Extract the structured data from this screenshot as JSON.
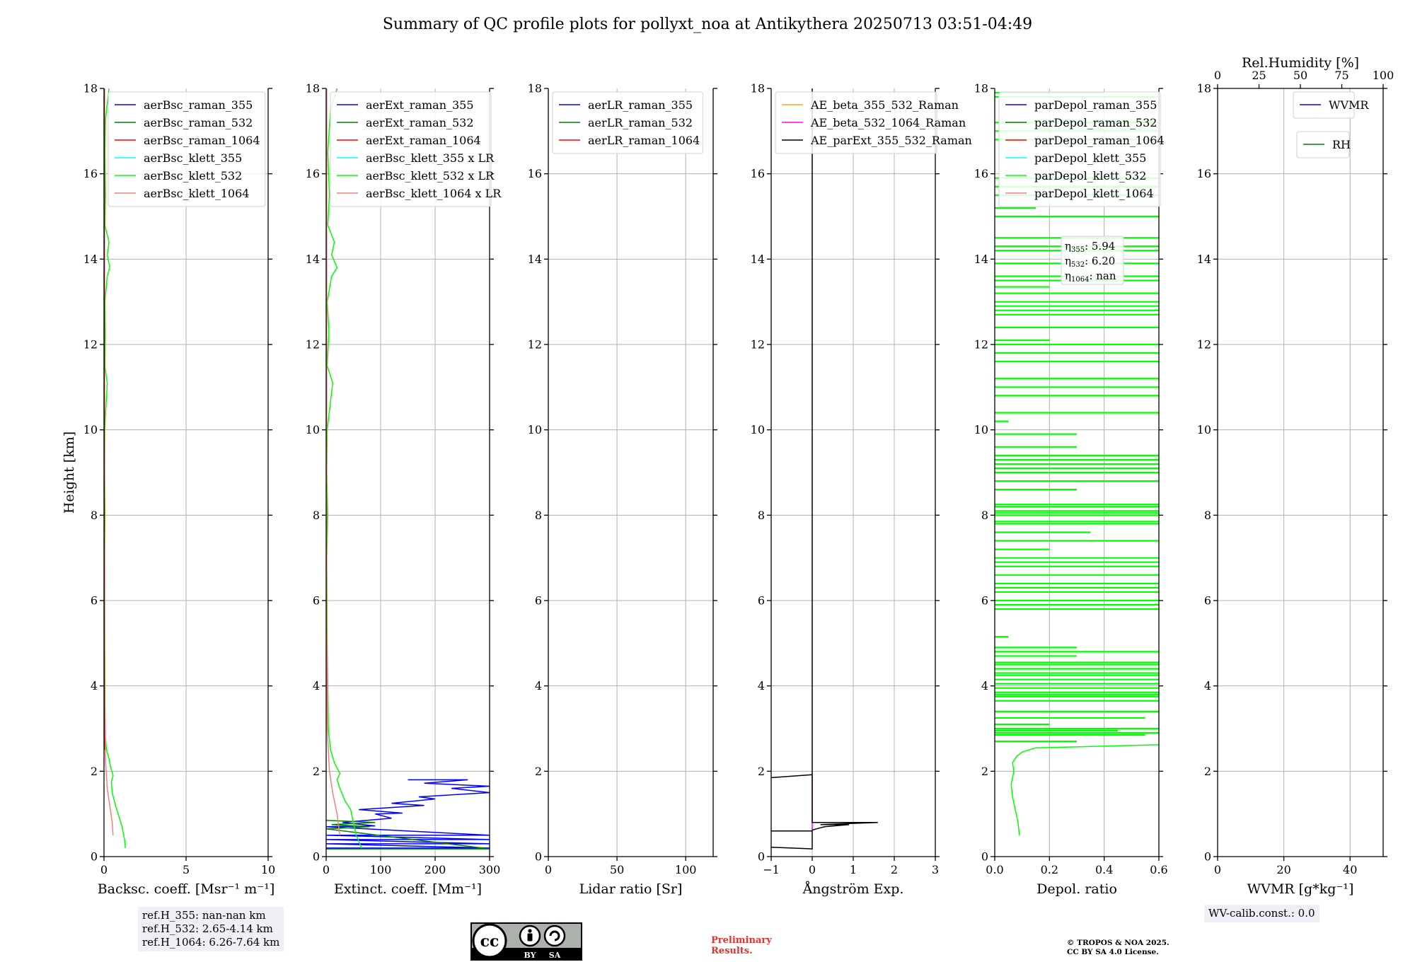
{
  "title": "Summary of QC profile plots for pollyxt_noa at Antikythera 20250713 03:51-04:49",
  "ylabel": "Height [km]",
  "ytick_labels": [
    "0",
    "2",
    "4",
    "6",
    "8",
    "10",
    "12",
    "14",
    "16",
    "18"
  ],
  "y_range": [
    0,
    18
  ],
  "chart_data": [
    {
      "type": "line",
      "id": "backscatter",
      "xlabel": "Backsc. coeff. [Msr⁻¹ m⁻¹]",
      "xlim": [
        0,
        10
      ],
      "xticks": [
        0,
        5,
        10
      ],
      "xtick_labels": [
        "0",
        "5",
        "10"
      ],
      "legend": [
        {
          "label": "aerBsc_raman_355",
          "color": "#0000ff"
        },
        {
          "label": "aerBsc_raman_532",
          "color": "#008000"
        },
        {
          "label": "aerBsc_raman_1064",
          "color": "#ff0000"
        },
        {
          "label": "aerBsc_klett_355",
          "color": "#00ffff"
        },
        {
          "label": "aerBsc_klett_532",
          "color": "#00ff00"
        },
        {
          "label": "aerBsc_klett_1064",
          "color": "#f08080"
        }
      ],
      "series": [
        {
          "name": "aerBsc_klett_532",
          "color": "#00ff00",
          "points": [
            [
              1.3,
              0.2
            ],
            [
              1.25,
              0.4
            ],
            [
              1.1,
              0.7
            ],
            [
              0.9,
              0.95
            ],
            [
              0.7,
              1.2
            ],
            [
              0.5,
              1.5
            ],
            [
              0.45,
              1.75
            ],
            [
              0.55,
              1.9
            ],
            [
              0.4,
              2.1
            ],
            [
              0.3,
              2.3
            ],
            [
              0.15,
              2.5
            ],
            [
              0.08,
              2.8
            ],
            [
              0.05,
              3.5
            ],
            [
              0.04,
              5
            ],
            [
              0.03,
              7
            ],
            [
              0.05,
              8
            ],
            [
              0.03,
              9
            ],
            [
              0.04,
              10
            ],
            [
              0.2,
              11.1
            ],
            [
              0.05,
              11.5
            ],
            [
              0.08,
              12.3
            ],
            [
              0.05,
              13
            ],
            [
              0.2,
              13.6
            ],
            [
              0.35,
              13.8
            ],
            [
              0.2,
              14.1
            ],
            [
              0.3,
              14.4
            ],
            [
              0.05,
              14.8
            ],
            [
              0.1,
              15.5
            ],
            [
              0.05,
              16.5
            ],
            [
              0.1,
              17.3
            ],
            [
              0.3,
              18
            ]
          ]
        },
        {
          "name": "aerBsc_klett_1064",
          "color": "#f08080",
          "points": [
            [
              0.55,
              0.5
            ],
            [
              0.5,
              0.8
            ],
            [
              0.35,
              1.2
            ],
            [
              0.2,
              1.6
            ],
            [
              0.1,
              2.2
            ],
            [
              0.05,
              3
            ],
            [
              0.03,
              5
            ],
            [
              0.02,
              10
            ],
            [
              0.02,
              18
            ]
          ]
        },
        {
          "name": "aerBsc_raman_1064",
          "color": "#ff0000",
          "points": [
            [
              0.02,
              2.5
            ],
            [
              0.02,
              10
            ],
            [
              0.02,
              18
            ]
          ]
        }
      ]
    },
    {
      "type": "line",
      "id": "extinction",
      "xlabel": "Extinct. coeff. [Mm⁻¹]",
      "xlim": [
        0,
        300
      ],
      "xticks": [
        0,
        100,
        200,
        300
      ],
      "xtick_labels": [
        "0",
        "100",
        "200",
        "300"
      ],
      "legend": [
        {
          "label": "aerExt_raman_355",
          "color": "#0000ff"
        },
        {
          "label": "aerExt_raman_532",
          "color": "#008000"
        },
        {
          "label": "aerExt_raman_1064",
          "color": "#ff0000"
        },
        {
          "label": "aerBsc_klett_355 x LR",
          "color": "#00ffff"
        },
        {
          "label": "aerBsc_klett_532 x LR",
          "color": "#00ff00"
        },
        {
          "label": "aerBsc_klett_1064 x LR",
          "color": "#f08080"
        }
      ],
      "series": [
        {
          "name": "aerExt_raman_355",
          "color": "#0000ff",
          "points": [
            [
              0,
              0.2
            ],
            [
              300,
              0.2
            ],
            [
              0,
              0.3
            ],
            [
              300,
              0.3
            ],
            [
              0,
              0.4
            ],
            [
              300,
              0.4
            ],
            [
              0,
              0.5
            ],
            [
              300,
              0.5
            ],
            [
              0,
              0.7
            ],
            [
              90,
              0.72
            ],
            [
              30,
              0.8
            ],
            [
              120,
              0.9
            ],
            [
              90,
              1.0
            ],
            [
              140,
              1.02
            ],
            [
              60,
              1.1
            ],
            [
              180,
              1.2
            ],
            [
              120,
              1.25
            ],
            [
              200,
              1.35
            ],
            [
              170,
              1.4
            ],
            [
              300,
              1.5
            ],
            [
              230,
              1.6
            ],
            [
              300,
              1.65
            ],
            [
              180,
              1.72
            ],
            [
              260,
              1.8
            ],
            [
              150,
              1.8
            ]
          ]
        },
        {
          "name": "aerExt_raman_532",
          "color": "#008000",
          "points": [
            [
              0,
              0.18
            ],
            [
              300,
              0.18
            ],
            [
              0,
              0.65
            ],
            [
              80,
              0.7
            ],
            [
              10,
              0.75
            ],
            [
              90,
              0.8
            ],
            [
              0,
              0.85
            ]
          ]
        },
        {
          "name": "aerBsc_klett_532 x LR",
          "color": "#00ff00",
          "points": [
            [
              65,
              0.2
            ],
            [
              55,
              0.5
            ],
            [
              50,
              0.8
            ],
            [
              45,
              1.1
            ],
            [
              35,
              1.3
            ],
            [
              25,
              1.6
            ],
            [
              20,
              1.8
            ],
            [
              25,
              1.95
            ],
            [
              15,
              2.2
            ],
            [
              8,
              2.5
            ],
            [
              4,
              3
            ],
            [
              2,
              5
            ],
            [
              1,
              7
            ],
            [
              3,
              8
            ],
            [
              1,
              9
            ],
            [
              2,
              10
            ],
            [
              12,
              11.1
            ],
            [
              2,
              11.5
            ],
            [
              5,
              12.3
            ],
            [
              2,
              13
            ],
            [
              10,
              13.6
            ],
            [
              20,
              13.8
            ],
            [
              10,
              14.1
            ],
            [
              15,
              14.4
            ],
            [
              3,
              14.8
            ],
            [
              6,
              15.5
            ],
            [
              3,
              16.5
            ],
            [
              8,
              17.5
            ],
            [
              20,
              18
            ]
          ]
        },
        {
          "name": "aerBsc_klett_1064 x LR",
          "color": "#f08080",
          "points": [
            [
              25,
              0.5
            ],
            [
              20,
              1.0
            ],
            [
              12,
              1.5
            ],
            [
              6,
              2
            ],
            [
              2,
              3
            ],
            [
              1,
              6
            ],
            [
              1,
              18
            ]
          ]
        }
      ]
    },
    {
      "type": "line",
      "id": "lidar_ratio",
      "xlabel": "Lidar ratio [Sr]",
      "xlim": [
        0,
        120
      ],
      "xticks": [
        0,
        50,
        100
      ],
      "xtick_labels": [
        "0",
        "50",
        "100"
      ],
      "legend": [
        {
          "label": "aerLR_raman_355",
          "color": "#0000ff"
        },
        {
          "label": "aerLR_raman_532",
          "color": "#008000"
        },
        {
          "label": "aerLR_raman_1064",
          "color": "#ff0000"
        }
      ],
      "series": []
    },
    {
      "type": "line",
      "id": "angstrom",
      "xlabel": "Ångström Exp.",
      "xlim": [
        -1,
        3
      ],
      "xticks": [
        -1,
        0,
        1,
        2,
        3
      ],
      "xtick_labels": [
        "−1",
        "0",
        "1",
        "2",
        "3"
      ],
      "legend": [
        {
          "label": "AE_beta_355_532_Raman",
          "color": "#ffa500"
        },
        {
          "label": "AE_beta_532_1064_Raman",
          "color": "#ff00ff"
        },
        {
          "label": "AE_parExt_355_532_Raman",
          "color": "#000000"
        }
      ],
      "series": [
        {
          "name": "AE_beta_532_1064_Raman",
          "color": "#ff00ff",
          "points": [
            [
              0,
              0.6
            ],
            [
              0,
              1.95
            ]
          ]
        },
        {
          "name": "AE_parExt_355_532_Raman",
          "color": "#000000",
          "points": [
            [
              -1,
              0.22
            ],
            [
              0,
              0.18
            ],
            [
              0,
              0.6
            ],
            [
              -1,
              0.6
            ],
            [
              0,
              0.6
            ],
            [
              0,
              0.62
            ],
            [
              0.1,
              0.65
            ],
            [
              0.3,
              0.7
            ],
            [
              0.9,
              0.75
            ],
            [
              0.2,
              0.75
            ],
            [
              1.6,
              0.8
            ],
            [
              0,
              0.8
            ],
            [
              0,
              1.92
            ],
            [
              -1,
              1.85
            ],
            [
              0,
              1.92
            ],
            [
              0,
              18
            ]
          ]
        }
      ]
    },
    {
      "type": "line",
      "id": "depolarization",
      "xlabel": "Depol. ratio",
      "xlim": [
        0,
        0.6
      ],
      "xticks": [
        0,
        0.2,
        0.4,
        0.6
      ],
      "xtick_labels": [
        "0.0",
        "0.2",
        "0.4",
        "0.6"
      ],
      "legend": [
        {
          "label": "parDepol_raman_355",
          "color": "#0000ff"
        },
        {
          "label": "parDepol_raman_532",
          "color": "#008000"
        },
        {
          "label": "parDepol_raman_1064",
          "color": "#ff0000"
        },
        {
          "label": "parDepol_klett_355",
          "color": "#00ffff"
        },
        {
          "label": "parDepol_klett_532",
          "color": "#00ff00"
        },
        {
          "label": "parDepol_klett_1064",
          "color": "#f08080"
        }
      ],
      "eta_labels": [
        "η",
        "355",
        ": 5.94",
        "532",
        ": 6.20",
        "1064",
        ": nan"
      ],
      "series": [
        {
          "name": "parDepol_klett_532",
          "color": "#00ff00",
          "points": [
            [
              0.09,
              0.5
            ],
            [
              0.085,
              0.8
            ],
            [
              0.075,
              1.1
            ],
            [
              0.065,
              1.4
            ],
            [
              0.06,
              1.7
            ],
            [
              0.07,
              2.0
            ],
            [
              0.065,
              2.2
            ],
            [
              0.08,
              2.35
            ],
            [
              0.1,
              2.45
            ],
            [
              0.15,
              2.55
            ],
            [
              0.6,
              2.62
            ]
          ],
          "spikes": [
            2.7,
            2.85,
            2.9,
            2.95,
            3.0,
            3.1,
            3.25,
            3.4,
            3.65,
            3.75,
            3.8,
            3.85,
            3.95,
            4.05,
            4.15,
            4.25,
            4.3,
            4.4,
            4.5,
            4.55,
            4.7,
            4.8,
            4.9,
            5.15,
            5.8,
            5.9,
            6.0,
            6.2,
            6.3,
            6.4,
            6.6,
            6.8,
            6.9,
            7.0,
            7.2,
            7.4,
            7.6,
            7.8,
            7.85,
            8.0,
            8.05,
            8.1,
            8.2,
            8.25,
            8.6,
            8.8,
            9.0,
            9.1,
            9.2,
            9.3,
            9.4,
            9.6,
            9.9,
            10.2,
            10.4,
            10.8,
            11.0,
            11.2,
            11.6,
            11.8,
            12.0,
            12.1,
            12.4,
            12.7,
            12.8,
            12.9,
            13.0,
            13.2,
            13.35,
            13.5,
            13.6,
            13.9,
            14.2,
            14.3,
            14.5,
            15.0,
            15.2,
            15.5,
            15.7,
            15.9,
            16.8,
            17.0,
            17.2,
            17.8,
            17.9
          ],
          "spike_lengths": [
            0.3,
            0.55,
            0.6,
            0.45,
            0.6,
            0.2,
            0.55,
            0.6,
            0.6,
            0.6,
            0.6,
            0.6,
            0.6,
            0.6,
            0.6,
            0.6,
            0.6,
            0.6,
            0.6,
            0.6,
            0.3,
            0.6,
            0.3,
            0.05,
            0.6,
            0.6,
            0.6,
            0.6,
            0.6,
            0.6,
            0.6,
            0.6,
            0.6,
            0.6,
            0.2,
            0.6,
            0.35,
            0.6,
            0.6,
            0.6,
            0.6,
            0.6,
            0.6,
            0.6,
            0.3,
            0.6,
            0.6,
            0.6,
            0.6,
            0.6,
            0.6,
            0.3,
            0.3,
            0.05,
            0.6,
            0.6,
            0.6,
            0.6,
            0.6,
            0.6,
            0.6,
            0.2,
            0.6,
            0.6,
            0.6,
            0.6,
            0.6,
            0.6,
            0.2,
            0.6,
            0.6,
            0.6,
            0.6,
            0.6,
            0.6,
            0.6,
            0.15,
            0.6,
            0.6,
            0.6,
            0.6,
            0.6,
            0.6,
            0.6,
            0.4
          ]
        }
      ]
    },
    {
      "type": "line",
      "id": "wvmr",
      "xlabel": "WVMR [g*kg⁻¹]",
      "xlim": [
        0,
        50
      ],
      "xticks": [
        0,
        20,
        40
      ],
      "xtick_labels": [
        "0",
        "20",
        "40"
      ],
      "top_xlabel": "Rel.Humidity [%]",
      "top_xlim": [
        0,
        100
      ],
      "top_xticks": [
        0,
        25,
        50,
        75,
        100
      ],
      "top_xtick_labels": [
        "0",
        "25",
        "50",
        "75",
        "100"
      ],
      "legend": [
        {
          "label": "WVMR",
          "color": "#0000ff"
        }
      ],
      "legend2": [
        {
          "label": "RH",
          "color": "#008000"
        }
      ],
      "series": []
    }
  ],
  "info": {
    "refh_lines": [
      "ref.H_355: nan-nan km",
      "ref.H_532: 2.65-4.14 km",
      "ref.H_1064: 6.26-7.64 km"
    ],
    "wv_calib": "WV-calib.const.: 0.0",
    "prelim_lines": [
      "Preliminary",
      "Results."
    ],
    "copyright_lines": [
      "© TROPOS & NOA 2025.",
      "CC BY SA 4.0 License."
    ],
    "license_badge": {
      "cc": "cc",
      "by": "BY",
      "sa": "SA"
    }
  }
}
